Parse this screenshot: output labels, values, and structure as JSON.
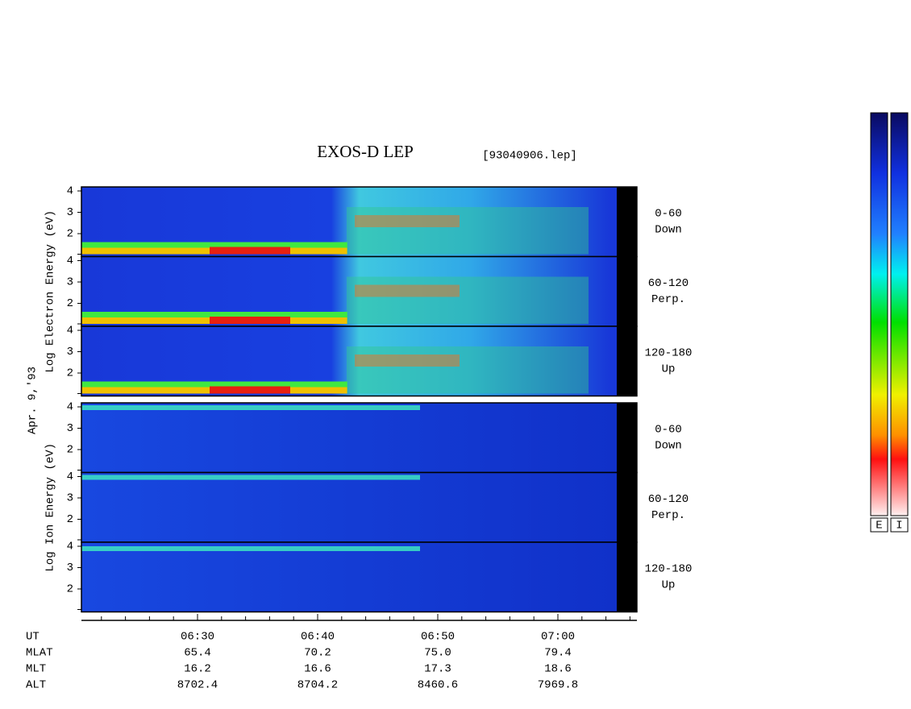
{
  "title": "EXOS-D LEP",
  "file": "[93040906.lep]",
  "date_label": "Apr. 9,'93",
  "groups": [
    {
      "label": "Log   Electron   Energy   (eV)",
      "panels": [
        {
          "yticks": [
            "4",
            "3",
            "2"
          ],
          "angle": "0-60",
          "direction": "Down"
        },
        {
          "yticks": [
            "4",
            "3",
            "2"
          ],
          "angle": "60-120",
          "direction": "Perp."
        },
        {
          "yticks": [
            "4",
            "3",
            "2"
          ],
          "angle": "120-180",
          "direction": "Up"
        }
      ]
    },
    {
      "label": "Log   Ion   Energy   (eV)",
      "panels": [
        {
          "yticks": [
            "4",
            "3",
            "2"
          ],
          "angle": "0-60",
          "direction": "Down"
        },
        {
          "yticks": [
            "4",
            "3",
            "2"
          ],
          "angle": "60-120",
          "direction": "Perp."
        },
        {
          "yticks": [
            "4",
            "3",
            "2"
          ],
          "angle": "120-180",
          "direction": "Up"
        }
      ]
    }
  ],
  "orbit": [
    {
      "label": "UT",
      "values": [
        "06:30",
        "06:40",
        "06:50",
        "07:00"
      ]
    },
    {
      "label": "MLAT",
      "values": [
        "65.4",
        "70.2",
        "75.0",
        "79.4"
      ]
    },
    {
      "label": "MLT",
      "values": [
        "16.2",
        "16.6",
        "17.3",
        "18.6"
      ]
    },
    {
      "label": "ALT",
      "values": [
        "8702.4",
        "8704.2",
        "8460.6",
        "7969.8"
      ]
    }
  ],
  "colorbar_labels": [
    "E",
    "I"
  ]
}
